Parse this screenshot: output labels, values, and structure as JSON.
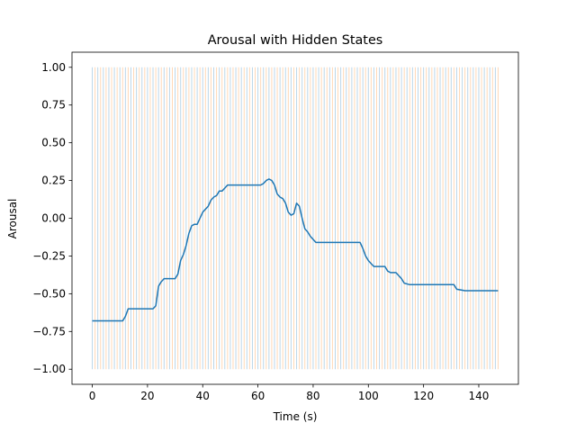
{
  "chart_data": {
    "type": "line",
    "title": "Arousal with Hidden States",
    "xlabel": "Time (s)",
    "ylabel": "Arousal",
    "xlim": [
      -7.35,
      154.35
    ],
    "ylim": [
      -1.1,
      1.1
    ],
    "xticks": [
      0,
      20,
      40,
      60,
      80,
      100,
      120,
      140
    ],
    "yticks": [
      -1.0,
      -0.75,
      -0.5,
      -0.25,
      0.0,
      0.25,
      0.5,
      0.75,
      1.0
    ],
    "xtick_labels": [
      "0",
      "20",
      "40",
      "60",
      "80",
      "100",
      "120",
      "140"
    ],
    "ytick_labels": [
      "−1.00",
      "−0.75",
      "−0.50",
      "−0.25",
      "0.00",
      "0.25",
      "0.50",
      "0.75",
      "1.00"
    ],
    "grid": false,
    "hidden_states": {
      "type": "vlines",
      "x_start": 0,
      "x_end": 147,
      "ymin": -1.0,
      "ymax": 1.0,
      "colors": [
        "#1f77b4",
        "#ff7f0e"
      ],
      "alpha": 0.3
    },
    "series": [
      {
        "color": "#1f77b4",
        "x": [
          0,
          2,
          4,
          6,
          8,
          10,
          11,
          12,
          13,
          14,
          16,
          18,
          20,
          22,
          23,
          24,
          25,
          26,
          27,
          28,
          30,
          31,
          32,
          33,
          34,
          35,
          36,
          37,
          38,
          39,
          40,
          41,
          42,
          43,
          44,
          45,
          46,
          47,
          48,
          49,
          50,
          52,
          55,
          58,
          61,
          62,
          63,
          64,
          65,
          66,
          67,
          68,
          69,
          70,
          71,
          72,
          73,
          74,
          75,
          76,
          77,
          78,
          79,
          80,
          81,
          84,
          88,
          92,
          96,
          97,
          98,
          99,
          100,
          101,
          102,
          104,
          106,
          107,
          108,
          110,
          111,
          112,
          113,
          115,
          120,
          125,
          130,
          131,
          132,
          135,
          140,
          147
        ],
        "y": [
          -0.68,
          -0.68,
          -0.68,
          -0.68,
          -0.68,
          -0.68,
          -0.68,
          -0.65,
          -0.6,
          -0.6,
          -0.6,
          -0.6,
          -0.6,
          -0.6,
          -0.58,
          -0.45,
          -0.42,
          -0.4,
          -0.4,
          -0.4,
          -0.4,
          -0.37,
          -0.28,
          -0.24,
          -0.18,
          -0.1,
          -0.05,
          -0.04,
          -0.04,
          0.0,
          0.04,
          0.06,
          0.08,
          0.12,
          0.14,
          0.15,
          0.18,
          0.18,
          0.2,
          0.22,
          0.22,
          0.22,
          0.22,
          0.22,
          0.22,
          0.23,
          0.25,
          0.26,
          0.25,
          0.22,
          0.16,
          0.14,
          0.13,
          0.1,
          0.04,
          0.02,
          0.03,
          0.1,
          0.08,
          0.0,
          -0.07,
          -0.09,
          -0.12,
          -0.14,
          -0.16,
          -0.16,
          -0.16,
          -0.16,
          -0.16,
          -0.16,
          -0.2,
          -0.25,
          -0.28,
          -0.3,
          -0.32,
          -0.32,
          -0.32,
          -0.35,
          -0.36,
          -0.36,
          -0.38,
          -0.4,
          -0.43,
          -0.44,
          -0.44,
          -0.44,
          -0.44,
          -0.44,
          -0.47,
          -0.48,
          -0.48,
          -0.48
        ]
      }
    ]
  }
}
